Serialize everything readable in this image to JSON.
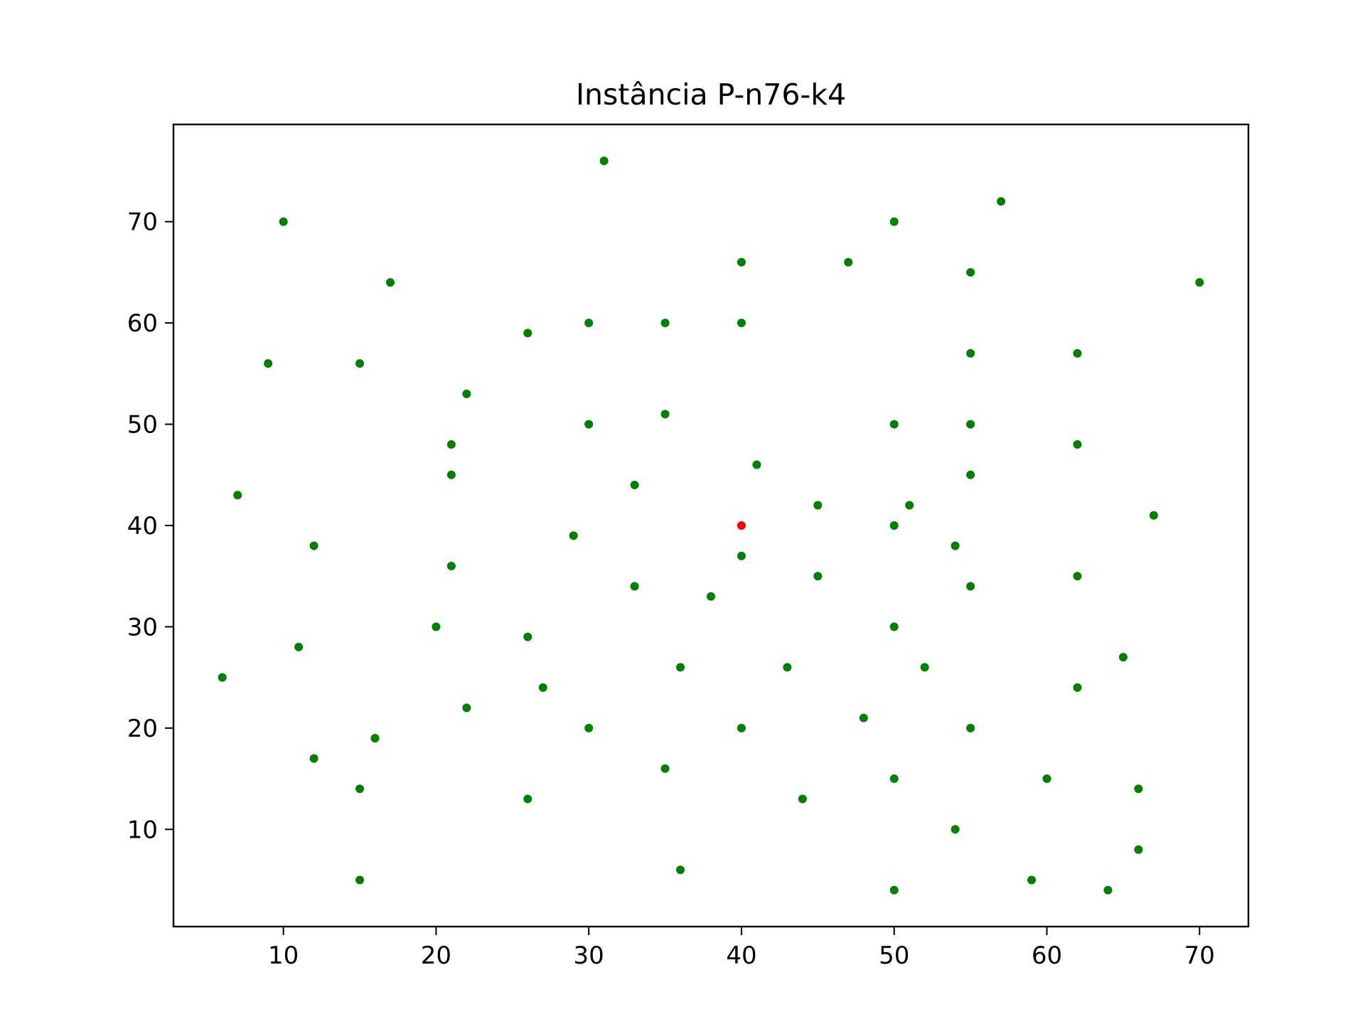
{
  "chart_data": {
    "type": "scatter",
    "title": "Instância P-n76-k4",
    "xlabel": "",
    "ylabel": "",
    "xlim": [
      2.8,
      73.2
    ],
    "ylim": [
      0.4,
      79.6
    ],
    "xticks": [
      10,
      20,
      30,
      40,
      50,
      60,
      70
    ],
    "yticks": [
      10,
      20,
      30,
      40,
      50,
      60,
      70
    ],
    "grid": false,
    "legend": "none",
    "colors": {
      "customers": "#008000",
      "depot": "#ff0000",
      "axes": "#000000",
      "background": "#ffffff"
    },
    "series": [
      {
        "role": "customers",
        "x": [
          31,
          10,
          57,
          50,
          40,
          47,
          55,
          17,
          70,
          30,
          35,
          40,
          26,
          9,
          15,
          55,
          62,
          22,
          35,
          30,
          50,
          55,
          21,
          62,
          41,
          21,
          55,
          33,
          7,
          45,
          51,
          67,
          50,
          29,
          12,
          54,
          40,
          21,
          62,
          45,
          33,
          55,
          38,
          20,
          50,
          26,
          11,
          65,
          36,
          43,
          52,
          6,
          27,
          62,
          22,
          48,
          30,
          40,
          55,
          16,
          12,
          35,
          50,
          60,
          15,
          66,
          26,
          44,
          54,
          66,
          36,
          15,
          59,
          50,
          64
        ],
        "y": [
          76,
          70,
          72,
          70,
          66,
          66,
          65,
          64,
          64,
          60,
          60,
          60,
          59,
          56,
          56,
          57,
          57,
          53,
          51,
          50,
          50,
          50,
          48,
          48,
          46,
          45,
          45,
          44,
          43,
          42,
          42,
          41,
          40,
          39,
          38,
          38,
          37,
          36,
          35,
          35,
          34,
          34,
          33,
          30,
          30,
          29,
          28,
          27,
          26,
          26,
          26,
          25,
          24,
          24,
          22,
          21,
          20,
          20,
          20,
          19,
          17,
          16,
          15,
          15,
          14,
          14,
          13,
          13,
          10,
          8,
          6,
          5,
          5,
          4,
          4
        ]
      },
      {
        "role": "depot",
        "x": [
          40
        ],
        "y": [
          40
        ]
      }
    ]
  }
}
